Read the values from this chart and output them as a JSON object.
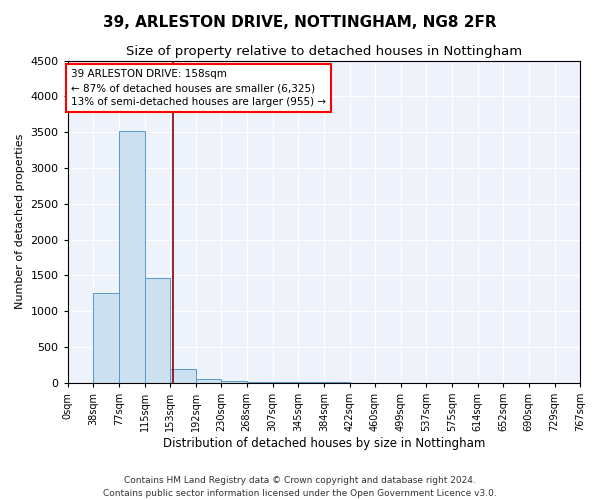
{
  "title": "39, ARLESTON DRIVE, NOTTINGHAM, NG8 2FR",
  "subtitle": "Size of property relative to detached houses in Nottingham",
  "xlabel": "Distribution of detached houses by size in Nottingham",
  "ylabel": "Number of detached properties",
  "footnote1": "Contains HM Land Registry data © Crown copyright and database right 2024.",
  "footnote2": "Contains public sector information licensed under the Open Government Licence v3.0.",
  "annotation_title": "39 ARLESTON DRIVE: 158sqm",
  "annotation_line2": "← 87% of detached houses are smaller (6,325)",
  "annotation_line3": "13% of semi-detached houses are larger (955) →",
  "property_size": 158,
  "property_line_color": "#8B0000",
  "bar_color": "#cce0f0",
  "bar_edge_color": "#5599cc",
  "background_color": "#eef2fb",
  "xlim_min": 0,
  "xlim_max": 767,
  "ylim_min": 0,
  "ylim_max": 4500,
  "bin_edges": [
    0,
    38,
    77,
    115,
    153,
    192,
    230,
    268,
    307,
    345,
    384,
    422,
    460,
    499,
    537,
    575,
    614,
    652,
    690,
    729,
    767
  ],
  "bin_counts": [
    0,
    1250,
    3520,
    1470,
    195,
    55,
    30,
    18,
    12,
    8,
    6,
    5,
    4,
    3,
    3,
    2,
    2,
    1,
    1,
    1
  ],
  "tick_labels": [
    "0sqm",
    "38sqm",
    "77sqm",
    "115sqm",
    "153sqm",
    "192sqm",
    "230sqm",
    "268sqm",
    "307sqm",
    "345sqm",
    "384sqm",
    "422sqm",
    "460sqm",
    "499sqm",
    "537sqm",
    "575sqm",
    "614sqm",
    "652sqm",
    "690sqm",
    "729sqm",
    "767sqm"
  ],
  "title_fontsize": 11,
  "subtitle_fontsize": 9.5,
  "axis_label_fontsize": 8.5,
  "tick_fontsize": 7,
  "annotation_fontsize": 7.5,
  "ylabel_fontsize": 8
}
